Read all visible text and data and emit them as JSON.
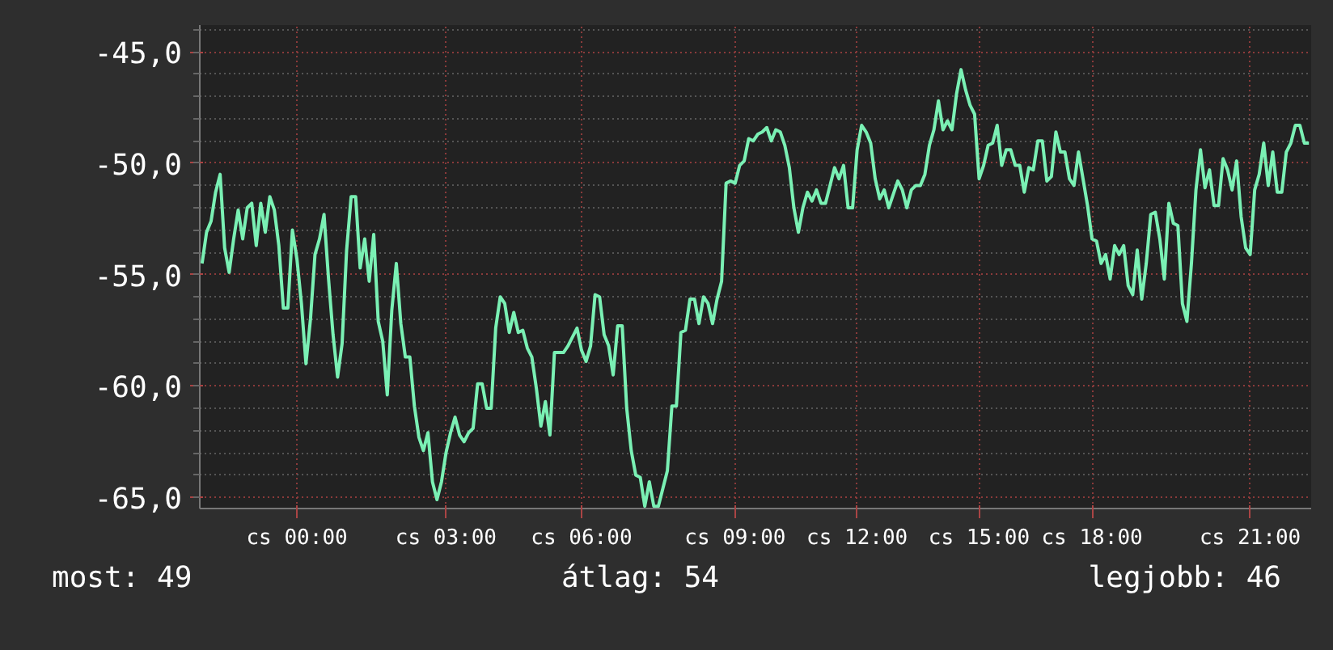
{
  "chart_data": {
    "type": "line",
    "categories": [
      null,
      null,
      null,
      null,
      null,
      null,
      null,
      null,
      null,
      null,
      null,
      null,
      null,
      null,
      null,
      null,
      null,
      null,
      null,
      null,
      null,
      "cs 00:00",
      null,
      null,
      null,
      null,
      null,
      null,
      null,
      null,
      null,
      null,
      null,
      null,
      null,
      null,
      null,
      null,
      null,
      null,
      null,
      null,
      null,
      null,
      null,
      null,
      null,
      null,
      null,
      null,
      null,
      null,
      null,
      null,
      "cs 03:00",
      null,
      null,
      null,
      null,
      null,
      null,
      null,
      null,
      null,
      null,
      null,
      null,
      null,
      null,
      null,
      null,
      null,
      null,
      null,
      null,
      null,
      null,
      null,
      null,
      null,
      null,
      null,
      null,
      null,
      "cs 06:00",
      null,
      null,
      null,
      null,
      null,
      null,
      null,
      null,
      null,
      null,
      null,
      null,
      null,
      null,
      null,
      null,
      null,
      null,
      null,
      null,
      null,
      null,
      null,
      null,
      null,
      null,
      null,
      null,
      null,
      null,
      null,
      null,
      null,
      "cs 09:00",
      null,
      null,
      null,
      null,
      null,
      null,
      null,
      null,
      null,
      null,
      null,
      null,
      null,
      null,
      null,
      null,
      null,
      null,
      null,
      null,
      null,
      null,
      null,
      null,
      null,
      null,
      "cs 12:00",
      null,
      null,
      null,
      null,
      null,
      null,
      null,
      null,
      null,
      null,
      null,
      null,
      null,
      null,
      null,
      null,
      null,
      null,
      null,
      null,
      null,
      null,
      null,
      null,
      null,
      null,
      "cs 15:00",
      null,
      null,
      null,
      null,
      null,
      null,
      null,
      null,
      null,
      null,
      null,
      null,
      null,
      null,
      null,
      null,
      null,
      null,
      null,
      null,
      null,
      null,
      null,
      null,
      "cs 18:00",
      null,
      null,
      null,
      null,
      null,
      null,
      null,
      null,
      null,
      null,
      null,
      null,
      null,
      null,
      null,
      null,
      null,
      null,
      null,
      null,
      null,
      null,
      null,
      null,
      null,
      null,
      null,
      null,
      null,
      null,
      null,
      null,
      null,
      null,
      "cs 21:00",
      null,
      null,
      null,
      null,
      null,
      null,
      null,
      null,
      null,
      null,
      null,
      null,
      null
    ],
    "series": [
      {
        "color": "#7af0b4",
        "values": [
          -54.5,
          -53.1,
          -52.6,
          -51.3,
          -50.5,
          -53.8,
          -54.9,
          -53.4,
          -52.1,
          -53.4,
          -52.0,
          -51.8,
          -53.7,
          -51.8,
          -53.1,
          -51.5,
          -52.1,
          -53.7,
          -56.5,
          -56.5,
          -53.0,
          -54.3,
          -56.3,
          -59.0,
          -57.0,
          -54.1,
          -53.4,
          -52.3,
          -55.2,
          -57.7,
          -59.6,
          -58.1,
          -53.9,
          -51.5,
          -51.5,
          -54.7,
          -53.4,
          -55.3,
          -53.2,
          -57.1,
          -58.0,
          -60.4,
          -56.6,
          -54.5,
          -57.2,
          -58.7,
          -58.7,
          -60.9,
          -62.3,
          -62.9,
          -62.1,
          -64.3,
          -65.1,
          -64.3,
          -63.0,
          -62.1,
          -61.4,
          -62.2,
          -62.5,
          -62.1,
          -61.9,
          -59.9,
          -59.9,
          -61.0,
          -61.0,
          -57.4,
          -56.0,
          -56.3,
          -57.6,
          -56.7,
          -57.6,
          -57.5,
          -58.3,
          -58.7,
          -60.1,
          -61.8,
          -60.7,
          -62.2,
          -58.5,
          -58.5,
          -58.5,
          -58.2,
          -57.8,
          -57.4,
          -58.4,
          -58.9,
          -58.2,
          -55.9,
          -56.0,
          -57.7,
          -58.2,
          -59.5,
          -57.3,
          -57.3,
          -61.0,
          -62.9,
          -64.0,
          -64.1,
          -65.4,
          -64.3,
          -65.4,
          -65.4,
          -64.6,
          -63.8,
          -60.9,
          -60.9,
          -57.6,
          -57.5,
          -56.1,
          -56.1,
          -57.2,
          -56.0,
          -56.3,
          -57.2,
          -56.1,
          -55.3,
          -50.9,
          -50.8,
          -50.9,
          -50.1,
          -49.9,
          -48.9,
          -49.0,
          -48.7,
          -48.6,
          -48.4,
          -49.0,
          -48.5,
          -48.6,
          -49.2,
          -50.2,
          -52.0,
          -53.1,
          -52.0,
          -51.3,
          -51.7,
          -51.2,
          -51.8,
          -51.8,
          -51.0,
          -50.2,
          -50.7,
          -50.1,
          -52.0,
          -52.0,
          -49.4,
          -48.3,
          -48.6,
          -49.1,
          -50.7,
          -51.6,
          -51.2,
          -52.0,
          -51.4,
          -50.8,
          -51.2,
          -52.0,
          -51.2,
          -51.0,
          -51.0,
          -50.5,
          -49.2,
          -48.5,
          -47.2,
          -48.5,
          -48.1,
          -48.5,
          -46.9,
          -45.8,
          -46.7,
          -47.4,
          -47.8,
          -50.7,
          -50.1,
          -49.2,
          -49.1,
          -48.3,
          -50.1,
          -49.4,
          -49.4,
          -50.1,
          -50.1,
          -51.3,
          -50.2,
          -50.3,
          -49.0,
          -49.0,
          -50.8,
          -50.6,
          -48.6,
          -49.5,
          -49.5,
          -50.7,
          -51.0,
          -49.5,
          -50.7,
          -51.9,
          -53.4,
          -53.5,
          -54.5,
          -54.1,
          -55.2,
          -53.7,
          -54.1,
          -53.7,
          -55.5,
          -55.9,
          -53.9,
          -56.1,
          -54.5,
          -52.3,
          -52.2,
          -53.4,
          -55.2,
          -51.8,
          -52.7,
          -52.8,
          -56.3,
          -57.1,
          -54.5,
          -51.2,
          -49.4,
          -51.1,
          -50.3,
          -51.9,
          -51.9,
          -49.8,
          -50.3,
          -51.2,
          -49.9,
          -52.4,
          -53.8,
          -54.1,
          -51.2,
          -50.5,
          -49.1,
          -51.0,
          -49.5,
          -51.3,
          -51.3,
          -49.5,
          -49.1,
          -48.3,
          -48.3,
          -49.1,
          -49.1
        ]
      }
    ],
    "ylim": [
      -65.5,
      -43.8
    ],
    "yticks": [
      {
        "value": -65,
        "label": "-65,0"
      },
      {
        "value": -60,
        "label": "-60,0"
      },
      {
        "value": -55,
        "label": "-55,0"
      },
      {
        "value": -50,
        "label": "-50,0"
      },
      {
        "value": -45,
        "label": "-45,0"
      }
    ],
    "grid": true,
    "line_style": "solid",
    "annotations": [
      "most: 49",
      "átlag: 54",
      "legjobb: 46"
    ]
  }
}
